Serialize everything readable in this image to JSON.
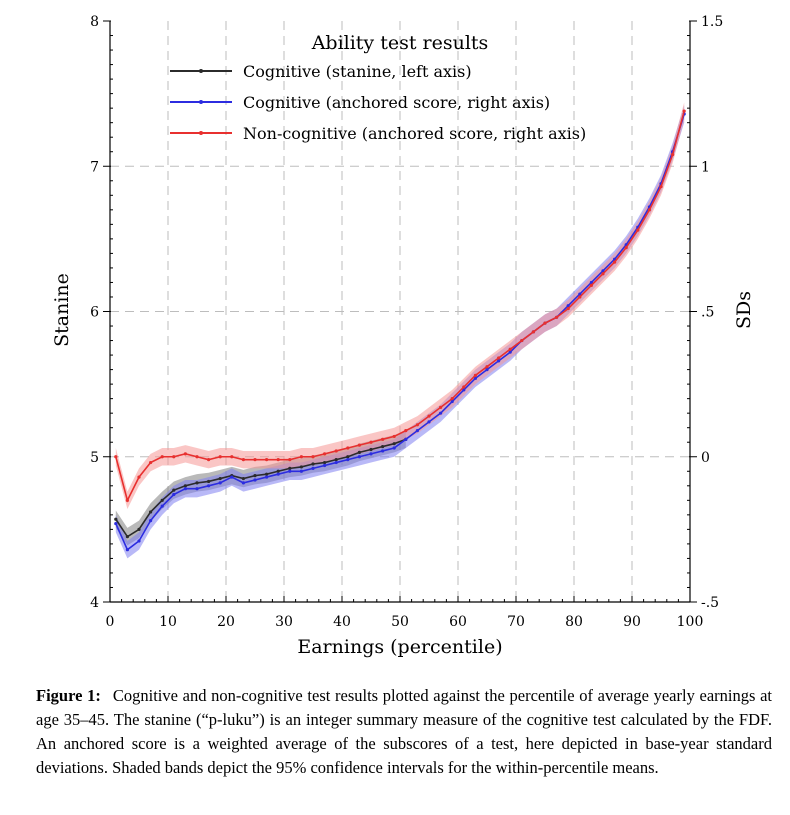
{
  "chart_data": {
    "type": "line",
    "title": "",
    "legend_title": "Ability test results",
    "legend_position": "top-center",
    "grid": true,
    "xlabel": "Earnings (percentile)",
    "ylabel": "Stanine",
    "y2label": "SDs",
    "xlim": [
      0,
      100
    ],
    "ylim": [
      4,
      8
    ],
    "y2lim": [
      -0.5,
      1.5
    ],
    "x_ticks": [
      "0",
      "10",
      "20",
      "30",
      "40",
      "50",
      "60",
      "70",
      "80",
      "90",
      "100"
    ],
    "y_ticks": [
      "4",
      "5",
      "6",
      "7",
      "8"
    ],
    "y2_ticks": [
      "-.5",
      "0",
      ".5",
      "1",
      "1.5"
    ],
    "y2_tick_values": [
      -0.5,
      0,
      0.5,
      1,
      1.5
    ],
    "series": [
      {
        "name": "Cognitive (stanine, left axis)",
        "axis": "left",
        "color": "#2b2b2b",
        "band_color": "#7f7f7f",
        "ci_halfwidth": 0.06,
        "x": [
          1,
          3,
          5,
          7,
          9,
          11,
          13,
          15,
          17,
          19,
          21,
          23,
          25,
          27,
          29,
          31,
          33,
          35,
          37,
          39,
          41,
          43,
          45,
          47,
          49,
          51
        ],
        "values": [
          4.57,
          4.45,
          4.5,
          4.62,
          4.7,
          4.77,
          4.8,
          4.82,
          4.83,
          4.85,
          4.87,
          4.85,
          4.87,
          4.88,
          4.9,
          4.92,
          4.93,
          4.95,
          4.96,
          4.98,
          5.0,
          5.03,
          5.05,
          5.07,
          5.09,
          5.12
        ]
      },
      {
        "name": "Cognitive (anchored score, right axis)",
        "axis": "right",
        "color": "#2c2ce0",
        "band_color": "#7f7ff0",
        "ci_halfwidth": 0.03,
        "x": [
          1,
          3,
          5,
          7,
          9,
          11,
          13,
          15,
          17,
          19,
          21,
          23,
          25,
          27,
          29,
          31,
          33,
          35,
          37,
          39,
          41,
          43,
          45,
          47,
          49,
          51,
          53,
          55,
          57,
          59,
          61,
          63,
          65,
          67,
          69,
          71,
          73,
          75,
          77,
          79,
          81,
          83,
          85,
          87,
          89,
          91,
          93,
          95,
          97,
          99
        ],
        "values": [
          -0.23,
          -0.32,
          -0.29,
          -0.22,
          -0.17,
          -0.13,
          -0.11,
          -0.11,
          -0.1,
          -0.09,
          -0.07,
          -0.09,
          -0.08,
          -0.07,
          -0.06,
          -0.05,
          -0.05,
          -0.04,
          -0.03,
          -0.02,
          -0.01,
          0.0,
          0.01,
          0.02,
          0.03,
          0.06,
          0.09,
          0.12,
          0.15,
          0.19,
          0.23,
          0.27,
          0.3,
          0.33,
          0.36,
          0.4,
          0.43,
          0.46,
          0.48,
          0.52,
          0.56,
          0.6,
          0.64,
          0.68,
          0.73,
          0.79,
          0.86,
          0.94,
          1.05,
          1.18
        ]
      },
      {
        "name": "Non-cognitive (anchored score, right axis)",
        "axis": "right",
        "color": "#e8302f",
        "band_color": "#f59896",
        "ci_halfwidth": 0.03,
        "x": [
          1,
          3,
          5,
          7,
          9,
          11,
          13,
          15,
          17,
          19,
          21,
          23,
          25,
          27,
          29,
          31,
          33,
          35,
          37,
          39,
          41,
          43,
          45,
          47,
          49,
          51,
          53,
          55,
          57,
          59,
          61,
          63,
          65,
          67,
          69,
          71,
          73,
          75,
          77,
          79,
          81,
          83,
          85,
          87,
          89,
          91,
          93,
          95,
          97,
          99
        ],
        "values": [
          0.0,
          -0.15,
          -0.07,
          -0.02,
          0.0,
          0.0,
          0.01,
          0.0,
          -0.01,
          0.0,
          0.0,
          -0.01,
          -0.01,
          -0.01,
          -0.01,
          -0.01,
          0.0,
          0.0,
          0.01,
          0.02,
          0.03,
          0.04,
          0.05,
          0.06,
          0.07,
          0.09,
          0.11,
          0.14,
          0.17,
          0.2,
          0.24,
          0.28,
          0.31,
          0.34,
          0.37,
          0.4,
          0.43,
          0.46,
          0.48,
          0.51,
          0.55,
          0.59,
          0.63,
          0.67,
          0.72,
          0.78,
          0.85,
          0.93,
          1.04,
          1.19
        ]
      }
    ]
  },
  "caption": {
    "label": "Figure 1:",
    "text": "Cognitive and non-cognitive test results plotted against the percentile of average yearly earnings at age 35–45. The stanine (“p-luku”) is an integer summary measure of the cognitive test calculated by the FDF. An anchored score is a weighted average of the subscores of a test, here depicted in base-year standard deviations. Shaded bands depict the 95% confidence intervals for the within-percentile means."
  }
}
